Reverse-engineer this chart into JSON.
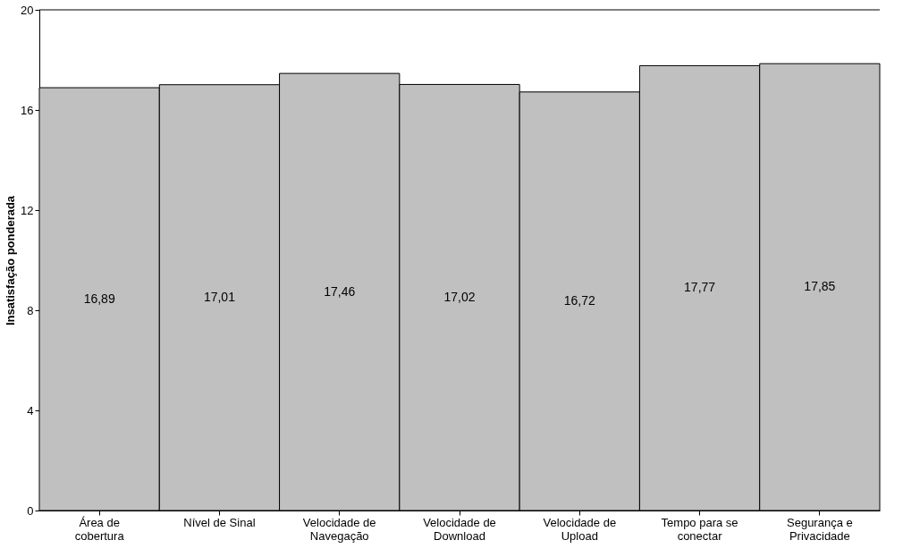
{
  "chart_data": {
    "type": "bar",
    "ylabel": "Insatisfação ponderada",
    "categories": [
      "Área de cobertura",
      "Nível de Sinal",
      "Velocidade de Navegação",
      "Velocidade de Download",
      "Velocidade de Upload",
      "Tempo para se conectar",
      "Segurança e Privacidade"
    ],
    "values": [
      16.89,
      17.01,
      17.46,
      17.02,
      16.72,
      17.77,
      17.85
    ],
    "value_labels": [
      "16,89",
      "17,01",
      "17,46",
      "17,02",
      "16,72",
      "17,77",
      "17,85"
    ],
    "color": "#c0c0c0",
    "ylim": [
      0,
      20
    ],
    "yticks": [
      0,
      4,
      8,
      12,
      16,
      20
    ],
    "grid": false
  }
}
